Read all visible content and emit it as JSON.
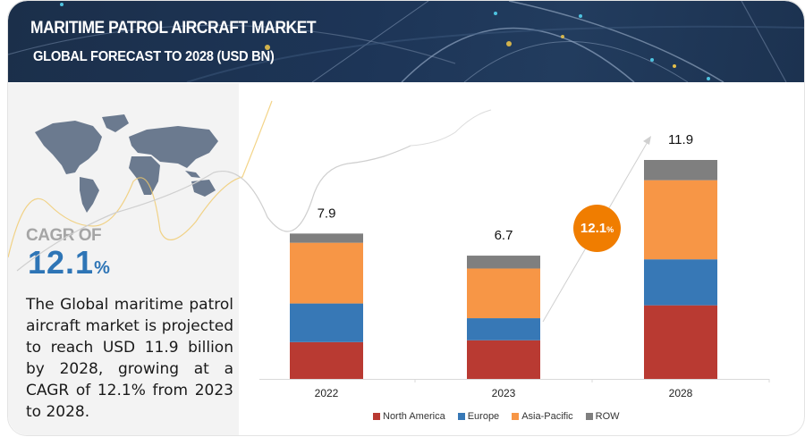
{
  "header": {
    "title": "MARITIME PATROL AIRCRAFT MARKET",
    "subtitle": "GLOBAL FORECAST TO 2028 (USD BN)"
  },
  "left_panel": {
    "cagr_label": "CAGR OF",
    "cagr_value": "12.1",
    "cagr_unit": "%",
    "description": "The Global maritime patrol aircraft market is projected to reach  USD 11.9 billion by 2028, growing at a CAGR of 12.1% from 2023 to 2028."
  },
  "cagr_bubble": {
    "value": "12.1",
    "unit": "%",
    "color": "#f07d00"
  },
  "chart_data": {
    "type": "bar",
    "stacked": true,
    "title": "GLOBAL FORECAST TO 2028 (USD BN)",
    "xlabel": "",
    "ylabel": "",
    "categories": [
      "2022",
      "2023",
      "2028"
    ],
    "totals": [
      7.9,
      6.7,
      11.9
    ],
    "total_labels": [
      "7.9",
      "6.7",
      "11.9"
    ],
    "series": [
      {
        "name": "North America",
        "color": "#b93a32",
        "values": [
          2.0,
          2.1,
          4.0
        ]
      },
      {
        "name": "Europe",
        "color": "#3778b6",
        "values": [
          2.1,
          1.2,
          2.5
        ]
      },
      {
        "name": "Asia-Pacific",
        "color": "#f79646",
        "values": [
          3.3,
          2.7,
          4.3
        ]
      },
      {
        "name": "ROW",
        "color": "#7f7f7f",
        "values": [
          0.5,
          0.7,
          1.1
        ]
      }
    ],
    "ylim": [
      0,
      11.9
    ],
    "grid": false,
    "legend": "bottom",
    "annotation": "CAGR 12.1% (2023-2028)"
  }
}
